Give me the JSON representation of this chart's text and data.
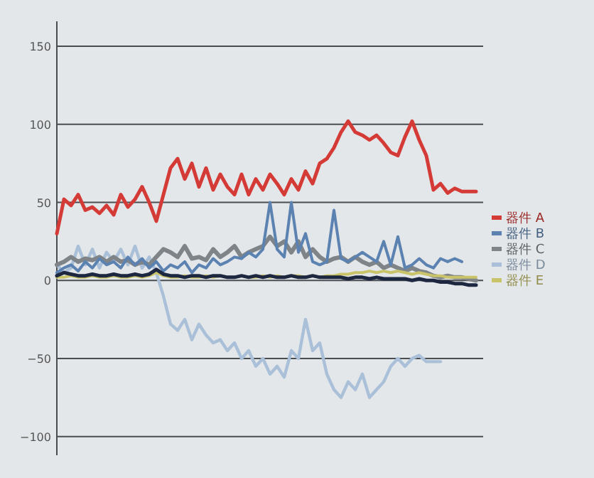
{
  "chart_data": {
    "type": "line",
    "categories": [
      null,
      null,
      null,
      null,
      null,
      null,
      null,
      null,
      null,
      null,
      null,
      null,
      null,
      null,
      null,
      null,
      null,
      null,
      null,
      null,
      null,
      null,
      null,
      null,
      null,
      null,
      null,
      null,
      null,
      null,
      null,
      null,
      null,
      null,
      null,
      null,
      null,
      null,
      null,
      null,
      null,
      null,
      null,
      null,
      null,
      null,
      null,
      null,
      null,
      null,
      null,
      null,
      null,
      null,
      null,
      null,
      null,
      null,
      null,
      null
    ],
    "ylim": [
      -112,
      166
    ],
    "yticks": [
      {
        "value": -100,
        "label": "−100"
      },
      {
        "value": -50,
        "label": "−50"
      },
      0,
      50,
      100,
      150
    ],
    "grid": "y",
    "legend": "right",
    "marker": "none",
    "line_style": "solid",
    "series": [
      {
        "color": "#1e2740",
        "values": [
          3,
          5,
          4,
          3,
          3,
          4,
          3,
          3,
          4,
          3,
          3,
          4,
          3,
          4,
          7,
          4,
          3,
          3,
          2,
          3,
          3,
          2,
          3,
          3,
          2,
          2,
          3,
          2,
          3,
          2,
          3,
          2,
          2,
          3,
          2,
          2,
          3,
          2,
          2,
          2,
          2,
          1,
          2,
          2,
          1,
          2,
          1,
          1,
          1,
          1,
          0,
          1,
          0,
          0,
          -1,
          -1,
          -2,
          -2,
          -3,
          -3
        ]
      },
      {
        "name": "器件 A",
        "color": "#d43a36",
        "values": [
          30,
          52,
          48,
          55,
          45,
          47,
          43,
          48,
          42,
          55,
          47,
          52,
          60,
          50,
          38,
          55,
          72,
          78,
          65,
          75,
          60,
          72,
          58,
          68,
          60,
          55,
          68,
          55,
          65,
          58,
          68,
          62,
          55,
          65,
          58,
          70,
          62,
          75,
          78,
          85,
          95,
          102,
          95,
          93,
          90,
          93,
          88,
          82,
          80,
          92,
          102,
          90,
          80,
          58,
          62,
          56,
          59,
          57,
          57,
          57
        ]
      },
      {
        "name": "器件 B",
        "color": "#5b82b0",
        "values": [
          5,
          8,
          10,
          6,
          12,
          8,
          14,
          10,
          12,
          8,
          15,
          10,
          14,
          8,
          12,
          6,
          10,
          8,
          12,
          5,
          10,
          8,
          14,
          10,
          12,
          15,
          14,
          18,
          15,
          20,
          50,
          20,
          15,
          50,
          18,
          30,
          12,
          10,
          12,
          45,
          14,
          12,
          15,
          18,
          15,
          12,
          25,
          10,
          28,
          8,
          10,
          14,
          10,
          8,
          14,
          12,
          14,
          12,
          null,
          null
        ]
      },
      {
        "name": "器件 C",
        "color": "#7f8488",
        "values": [
          10,
          12,
          15,
          12,
          14,
          13,
          15,
          12,
          15,
          12,
          13,
          10,
          12,
          10,
          15,
          20,
          18,
          15,
          22,
          14,
          15,
          13,
          20,
          15,
          18,
          22,
          15,
          18,
          20,
          22,
          28,
          22,
          25,
          18,
          25,
          15,
          20,
          15,
          12,
          14,
          15,
          12,
          15,
          12,
          10,
          12,
          8,
          10,
          8,
          6,
          8,
          6,
          5,
          3,
          2,
          3,
          2,
          2,
          1,
          0
        ]
      },
      {
        "name": "器件 D",
        "color": "#a9c0d8",
        "values": [
          10,
          5,
          8,
          22,
          10,
          20,
          8,
          18,
          12,
          20,
          10,
          22,
          8,
          15,
          5,
          -10,
          -28,
          -32,
          -25,
          -38,
          -28,
          -35,
          -40,
          -38,
          -45,
          -40,
          -50,
          -45,
          -55,
          -50,
          -60,
          -55,
          -62,
          -45,
          -50,
          -25,
          -45,
          -40,
          -60,
          -70,
          -75,
          -65,
          -70,
          -60,
          -75,
          -70,
          -65,
          -55,
          -50,
          -55,
          -50,
          -48,
          -52,
          -52,
          -52,
          null,
          null,
          null,
          null,
          null
        ]
      },
      {
        "name": "器件 E",
        "color": "#c9c46a",
        "values": [
          2,
          2,
          3,
          2,
          2,
          3,
          2,
          2,
          3,
          2,
          2,
          3,
          2,
          3,
          5,
          3,
          2,
          2,
          3,
          2,
          2,
          3,
          2,
          3,
          2,
          2,
          3,
          2,
          2,
          3,
          2,
          3,
          2,
          3,
          3,
          2,
          3,
          2,
          3,
          3,
          4,
          4,
          5,
          5,
          6,
          5,
          6,
          5,
          6,
          5,
          4,
          5,
          4,
          3,
          3,
          2,
          2,
          2,
          2,
          2
        ]
      }
    ]
  }
}
